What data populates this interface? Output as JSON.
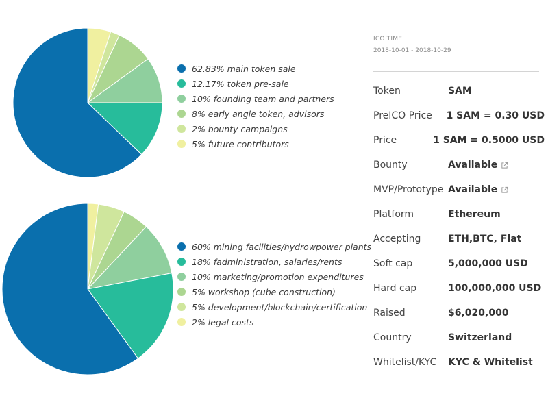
{
  "chart_data": [
    {
      "type": "pie",
      "slices": [
        {
          "label": "62.83% main token sale",
          "value": 62.83,
          "color": "#0a6fad"
        },
        {
          "label": "12.17% token pre-sale",
          "value": 12.17,
          "color": "#27bc9b"
        },
        {
          "label": "10% founding team and partners",
          "value": 10,
          "color": "#8fcf9e"
        },
        {
          "label": "8% early angle token, advisors",
          "value": 8,
          "color": "#acd691"
        },
        {
          "label": "2% bounty campaigns",
          "value": 2,
          "color": "#cfe69d"
        },
        {
          "label": "5% future contributors",
          "value": 5,
          "color": "#f0f0a0"
        }
      ]
    },
    {
      "type": "pie",
      "slices": [
        {
          "label": "60% mining facilities/hydrowpower plants",
          "value": 60,
          "color": "#0a6fad"
        },
        {
          "label": "18% fadministration, salaries/rents",
          "value": 18,
          "color": "#27bc9b"
        },
        {
          "label": "10% marketing/promotion expenditures",
          "value": 10,
          "color": "#8fcf9e"
        },
        {
          "label": "5% workshop (cube construction)",
          "value": 5,
          "color": "#acd691"
        },
        {
          "label": "5% development/blockchain/certification",
          "value": 5,
          "color": "#cfe69d"
        },
        {
          "label": "2% legal costs",
          "value": 2,
          "color": "#f0f0a0"
        }
      ]
    }
  ],
  "ico": {
    "label": "ICO TIME",
    "dates": "2018-10-01 - 2018-10-29"
  },
  "rows": [
    {
      "key": "Token",
      "value": "SAM"
    },
    {
      "key": "PreICO Price",
      "value": "1 SAM = 0.30 USD"
    },
    {
      "key": "Price",
      "value": "1 SAM = 0.5000 USD"
    },
    {
      "key": "Bounty",
      "value": "Available",
      "icon": "external-link-icon"
    },
    {
      "key": "MVP/Prototype",
      "value": "Available",
      "icon": "external-link-icon"
    },
    {
      "key": "Platform",
      "value": "Ethereum"
    },
    {
      "key": "Accepting",
      "value": "ETH,BTC, Fiat"
    },
    {
      "key": "Soft cap",
      "value": "5,000,000 USD"
    },
    {
      "key": "Hard cap",
      "value": "100,000,000 USD"
    },
    {
      "key": "Raised",
      "value": "$6,020,000"
    },
    {
      "key": "Country",
      "value": "Switzerland"
    },
    {
      "key": "Whitelist/KYC",
      "value": "KYC & Whitelist"
    }
  ]
}
